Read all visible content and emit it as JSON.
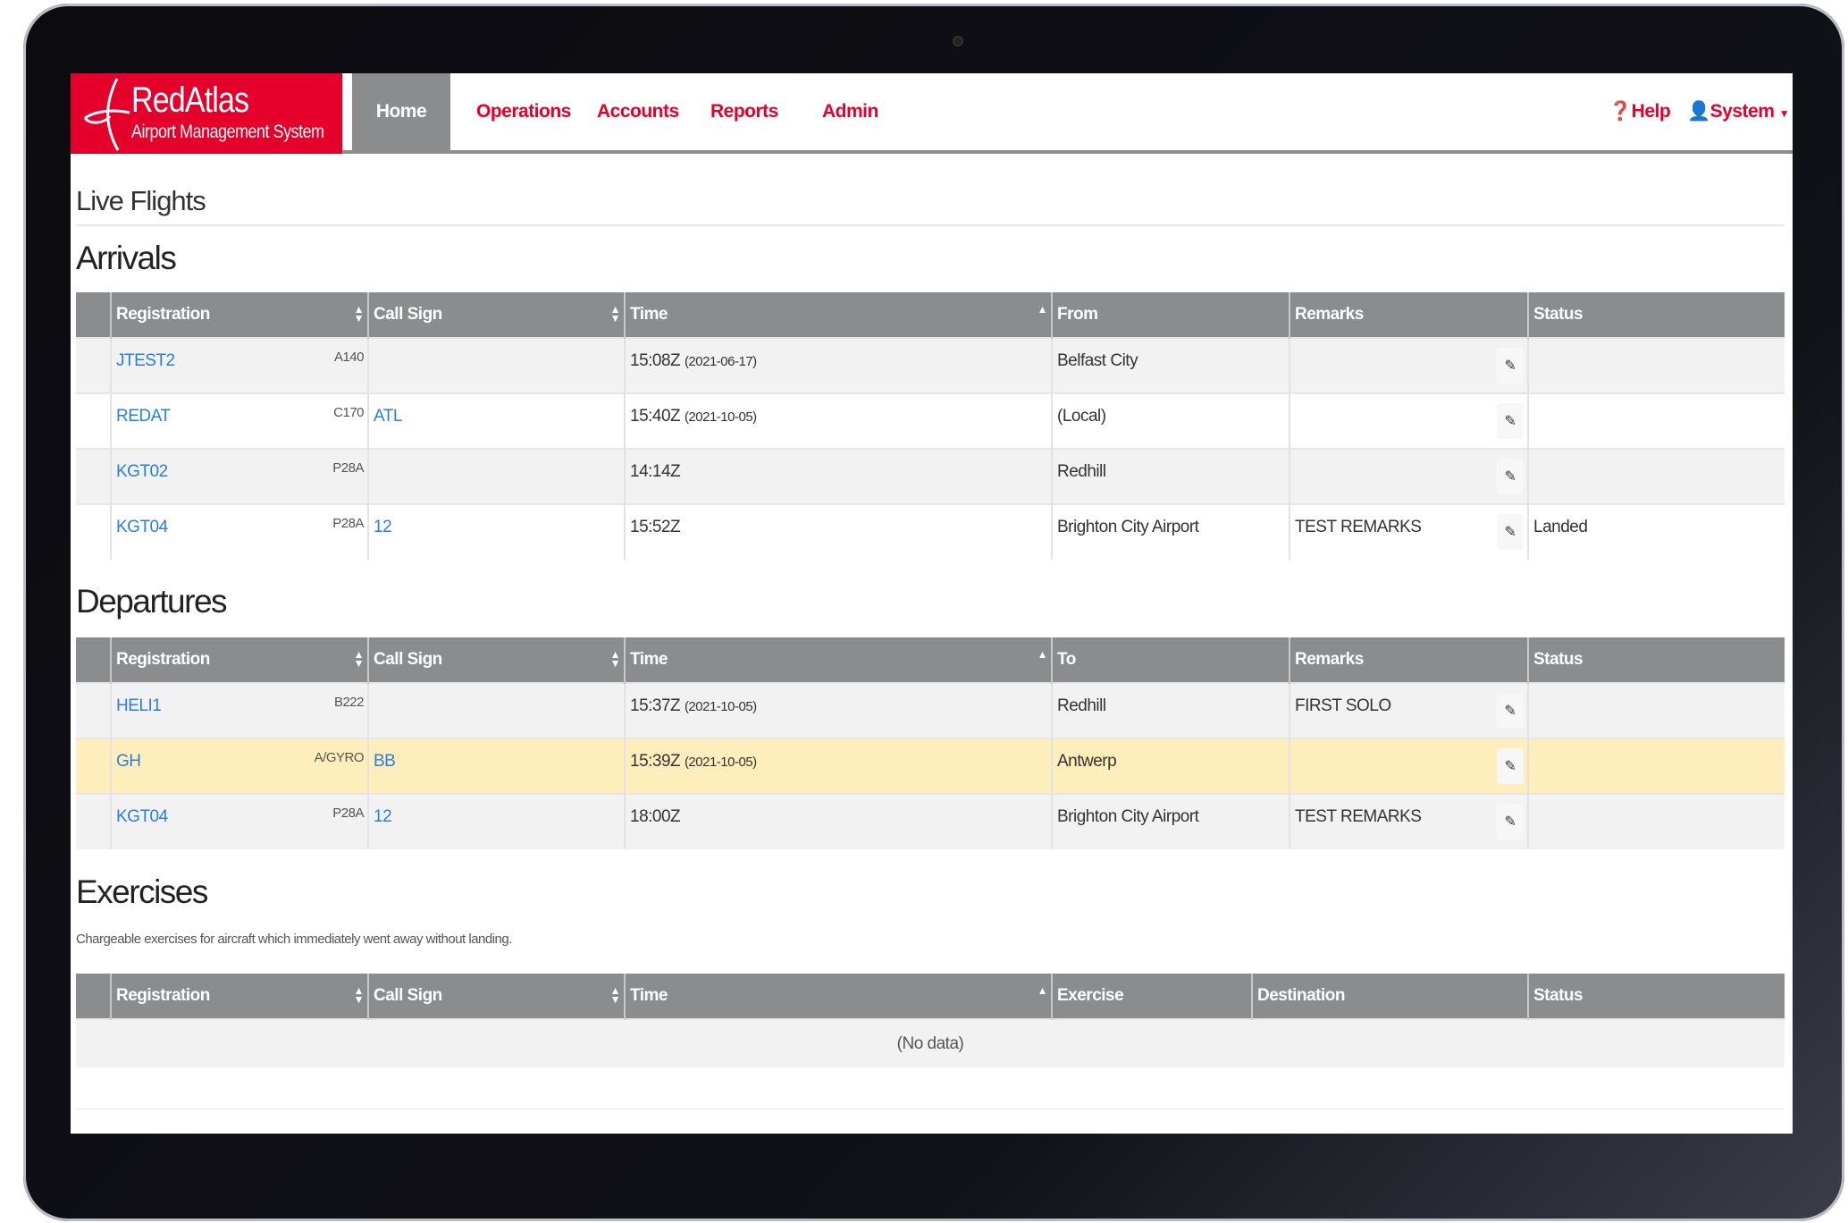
{
  "brand": {
    "name": "RedAtlas",
    "tagline": "Airport Management System"
  },
  "nav": {
    "items": [
      "Home",
      "Operations",
      "Accounts",
      "Reports",
      "Admin"
    ],
    "help": "Help",
    "user": "System",
    "accent": "#e4002b"
  },
  "page_title": "Live Flights",
  "arrivals": {
    "title": "Arrivals",
    "headers": [
      "Registration",
      "Call Sign",
      "Time",
      "From",
      "Remarks",
      "Status"
    ],
    "rows": [
      {
        "reg": "JTEST2",
        "type": "A140",
        "callsign": "",
        "time": "15:08Z",
        "date": "(2021-06-17)",
        "place": "Belfast City",
        "remarks": "",
        "status": ""
      },
      {
        "reg": "REDAT",
        "type": "C170",
        "callsign": "ATL",
        "time": "15:40Z",
        "date": "(2021-10-05)",
        "place": "(Local)",
        "remarks": "",
        "status": ""
      },
      {
        "reg": "KGT02",
        "type": "P28A",
        "callsign": "",
        "time": "14:14Z",
        "date": "",
        "place": "Redhill",
        "remarks": "",
        "status": ""
      },
      {
        "reg": "KGT04",
        "type": "P28A",
        "callsign": "12",
        "time": "15:52Z",
        "date": "",
        "place": "Brighton City Airport",
        "remarks": "TEST REMARKS",
        "status": "Landed"
      }
    ]
  },
  "departures": {
    "title": "Departures",
    "headers": [
      "Registration",
      "Call Sign",
      "Time",
      "To",
      "Remarks",
      "Status"
    ],
    "rows": [
      {
        "reg": "HELI1",
        "type": "B222",
        "callsign": "",
        "time": "15:37Z",
        "date": "(2021-10-05)",
        "place": "Redhill",
        "remarks": "FIRST SOLO",
        "status": ""
      },
      {
        "reg": "GH",
        "type": "A/GYRO",
        "callsign": "BB",
        "time": "15:39Z",
        "date": "(2021-10-05)",
        "place": "Antwerp",
        "remarks": "",
        "status": ""
      },
      {
        "reg": "KGT04",
        "type": "P28A",
        "callsign": "12",
        "time": "18:00Z",
        "date": "",
        "place": "Brighton City Airport",
        "remarks": "TEST REMARKS",
        "status": ""
      }
    ]
  },
  "exercises": {
    "title": "Exercises",
    "subtitle": "Chargeable exercises for aircraft which immediately went away without landing.",
    "headers": [
      "Registration",
      "Call Sign",
      "Time",
      "Exercise",
      "Destination",
      "Status"
    ],
    "empty": "(No data)"
  }
}
